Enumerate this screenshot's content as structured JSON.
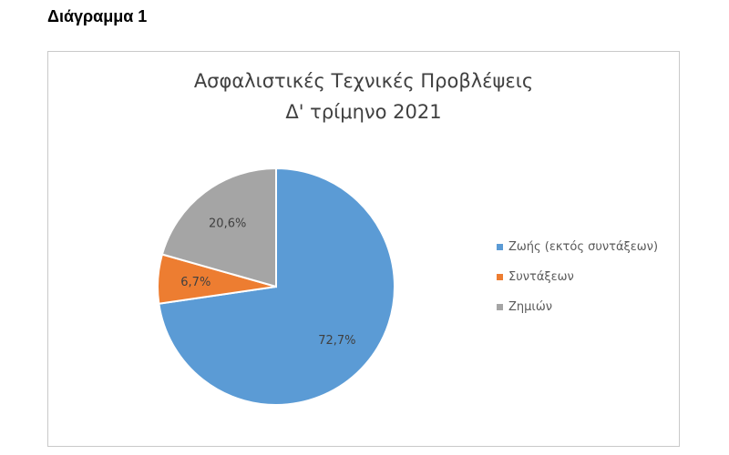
{
  "caption": "Διάγραμμα 1",
  "chart_data": {
    "type": "pie",
    "title": "Ασφαλιστικές Τεχνικές Προβλέψεις",
    "subtitle": "Δ' τρίμηνο 2021",
    "slices": [
      {
        "label": "Ζωής (εκτός συντάξεων)",
        "value": 72.7,
        "display": "72,7%",
        "color": "#5b9bd5"
      },
      {
        "label": "Συντάξεων",
        "value": 6.7,
        "display": "6,7%",
        "color": "#ed7d31"
      },
      {
        "label": "Ζημιών",
        "value": 20.6,
        "display": "20,6%",
        "color": "#a5a5a5"
      }
    ],
    "legend_position": "right"
  }
}
